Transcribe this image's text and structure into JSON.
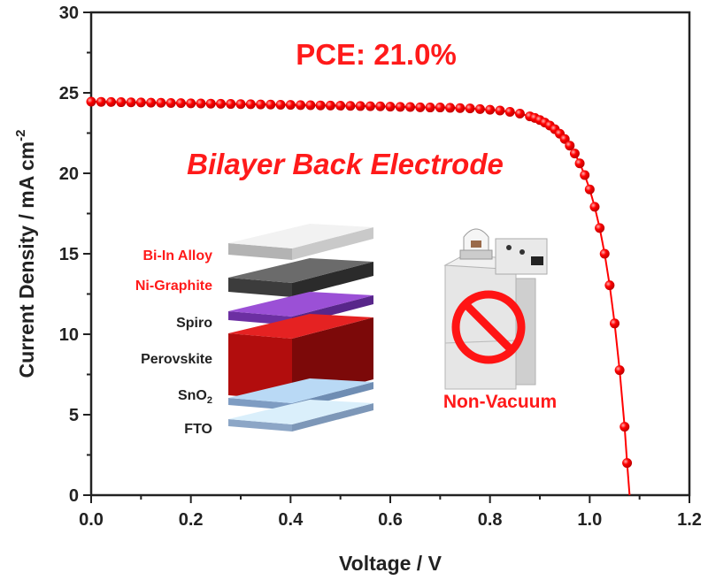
{
  "chart_data": {
    "type": "scatter",
    "title": "",
    "xlabel": "Voltage / V",
    "ylabel": "Current Density / mA cm",
    "ylabel_superscript": "-2",
    "xlim": [
      0,
      1.2
    ],
    "ylim": [
      0,
      30
    ],
    "xticks": [
      "0.0",
      "0.2",
      "0.4",
      "0.6",
      "0.8",
      "1.0",
      "1.2"
    ],
    "yticks": [
      "0",
      "5",
      "10",
      "15",
      "20",
      "25",
      "30"
    ],
    "grid": false,
    "series_color": "#ff0000",
    "x": [
      0,
      0.02,
      0.04,
      0.06,
      0.08,
      0.1,
      0.12,
      0.14,
      0.16,
      0.18,
      0.2,
      0.22,
      0.24,
      0.26,
      0.28,
      0.3,
      0.32,
      0.34,
      0.36,
      0.38,
      0.4,
      0.42,
      0.44,
      0.46,
      0.48,
      0.5,
      0.52,
      0.54,
      0.56,
      0.58,
      0.6,
      0.62,
      0.64,
      0.66,
      0.68,
      0.7,
      0.72,
      0.74,
      0.76,
      0.78,
      0.8,
      0.82,
      0.84,
      0.86,
      0.88,
      0.89,
      0.9,
      0.91,
      0.92,
      0.93,
      0.94,
      0.95,
      0.96,
      0.97,
      0.98,
      0.99,
      1.0,
      1.01,
      1.02,
      1.03,
      1.04,
      1.05,
      1.06,
      1.07,
      1.075
    ],
    "y": [
      24.45,
      24.44,
      24.43,
      24.42,
      24.41,
      24.4,
      24.39,
      24.38,
      24.37,
      24.36,
      24.35,
      24.34,
      24.33,
      24.32,
      24.31,
      24.3,
      24.29,
      24.28,
      24.27,
      24.26,
      24.25,
      24.24,
      24.23,
      24.22,
      24.21,
      24.2,
      24.19,
      24.18,
      24.17,
      24.16,
      24.14,
      24.13,
      24.12,
      24.1,
      24.09,
      24.09,
      24.07,
      24.05,
      24.03,
      23.99,
      23.95,
      23.9,
      23.82,
      23.71,
      23.54,
      23.44,
      23.31,
      23.15,
      22.97,
      22.74,
      22.46,
      22.13,
      21.72,
      21.23,
      20.62,
      19.89,
      19.0,
      17.92,
      16.6,
      15.0,
      13.04,
      10.67,
      7.77,
      4.25,
      2.0
    ],
    "voc": 1.08,
    "annotations": {
      "pce": "PCE: 21.0%",
      "subtitle": "Bilayer Back Electrode",
      "non_vacuum": "Non-Vacuum"
    },
    "layers": [
      {
        "label": "Bi-In Alloy",
        "label_color": "#ff1a1a",
        "top": "#f2f2f2",
        "front": "#b3b3b3",
        "side": "#c9c9c9"
      },
      {
        "label": "Ni-Graphite",
        "label_color": "#ff1a1a",
        "top": "#6b6b6b",
        "front": "#3c3c3c",
        "side": "#2b2b2b"
      },
      {
        "label": "Spiro",
        "label_color": "#222222",
        "top": "#9b50d6",
        "front": "#6c2fa2",
        "side": "#58268a"
      },
      {
        "label": "Perovskite",
        "label_color": "#222222",
        "top": "#e52222",
        "front": "#b20d0d",
        "side": "#7c0909"
      },
      {
        "label": "SnO",
        "label_sub": "2",
        "label_color": "#222222",
        "top": "#b9d9f5",
        "front": "#7e9cc2",
        "side": "#6f8db3"
      },
      {
        "label": "FTO",
        "label_color": "#222222",
        "top": "#daeffb",
        "front": "#8ca6c6",
        "side": "#7d97b8"
      }
    ]
  }
}
